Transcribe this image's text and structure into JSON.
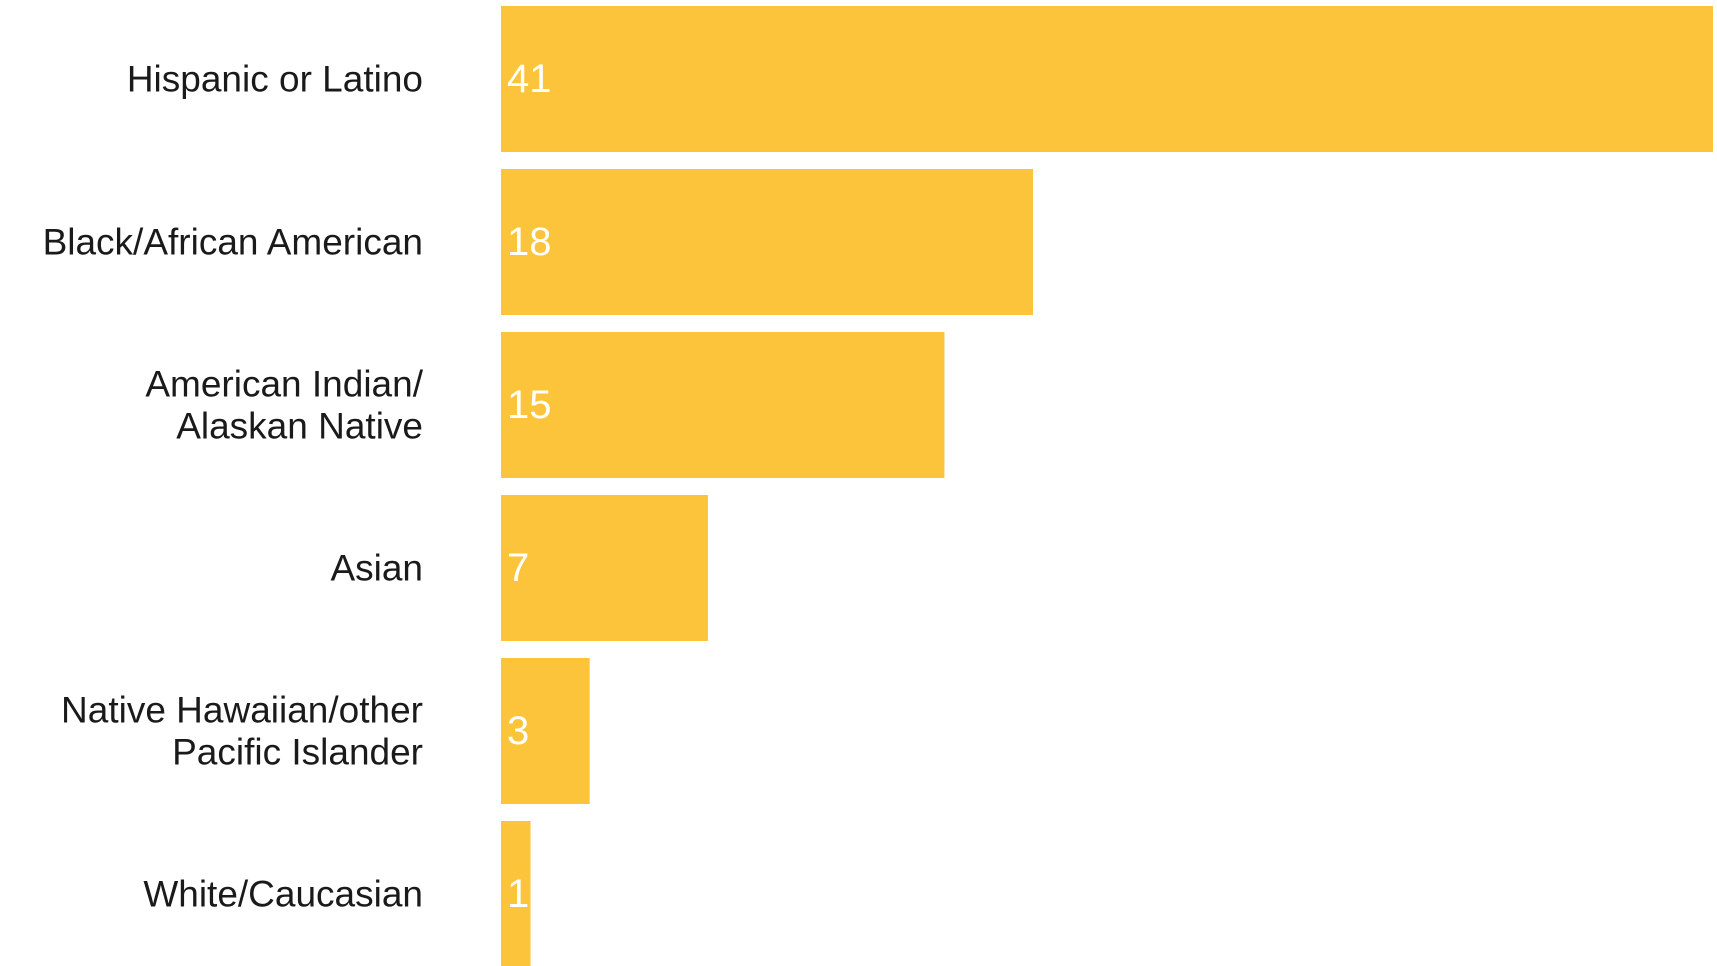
{
  "chart_data": {
    "type": "bar",
    "orientation": "horizontal",
    "title": "",
    "xlabel": "",
    "ylabel": "",
    "categories": [
      [
        "Hispanic or Latino"
      ],
      [
        "Black/African American"
      ],
      [
        "American Indian/",
        "Alaskan Native"
      ],
      [
        "Asian"
      ],
      [
        "Native Hawaiian/other",
        "Pacific Islander"
      ],
      [
        "White/Caucasian"
      ]
    ],
    "values": [
      41,
      18,
      15,
      7,
      3,
      1
    ],
    "xlim": [
      0,
      41
    ],
    "grid": false,
    "legend": "none",
    "bar_color": "#FCC43A",
    "value_label_color": "#FFFFFF",
    "category_label_color": "#1A1A1A",
    "value_labels": "inside-left"
  }
}
